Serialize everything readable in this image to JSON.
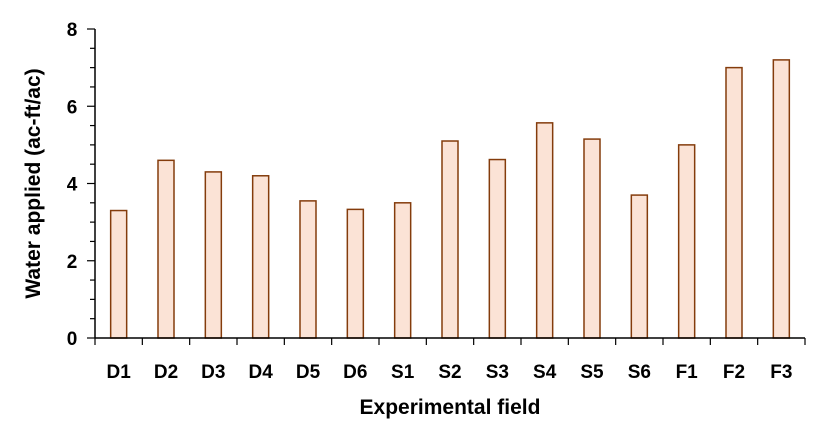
{
  "chart_data": {
    "type": "bar",
    "title": "",
    "xlabel": "Experimental field",
    "ylabel": "Water applied (ac-ft/ac)",
    "categories": [
      "D1",
      "D2",
      "D3",
      "D4",
      "D5",
      "D6",
      "S1",
      "S2",
      "S3",
      "S4",
      "S5",
      "S6",
      "F1",
      "F2",
      "F3"
    ],
    "values": [
      3.3,
      4.6,
      4.3,
      4.2,
      3.55,
      3.33,
      3.5,
      5.1,
      4.62,
      5.57,
      5.15,
      3.7,
      5.0,
      7.0,
      7.2
    ],
    "ylim": [
      0,
      8
    ],
    "yticks": [
      0,
      2,
      4,
      6,
      8
    ],
    "grid": false,
    "legend": "none",
    "bar_fill": "#fbe3d6",
    "bar_stroke": "#843c0c"
  }
}
